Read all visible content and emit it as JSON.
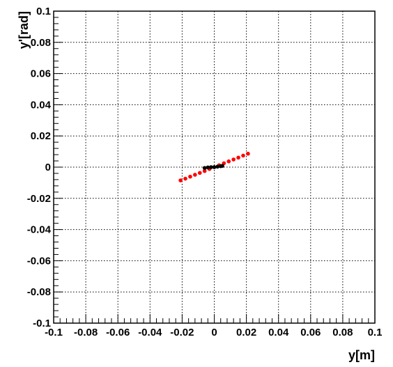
{
  "chart_data": {
    "type": "scatter",
    "xlabel": "y[m]",
    "ylabel": "y'[rad]",
    "xlim": [
      -0.1,
      0.1
    ],
    "ylim": [
      -0.1,
      0.1
    ],
    "grid": true,
    "x_ticks": [
      -0.1,
      -0.08,
      -0.06,
      -0.04,
      -0.02,
      0,
      0.02,
      0.04,
      0.06,
      0.08,
      0.1
    ],
    "y_ticks": [
      -0.1,
      -0.08,
      -0.06,
      -0.04,
      -0.02,
      0,
      0.02,
      0.04,
      0.06,
      0.08,
      0.1
    ],
    "x_tick_labels": [
      "-0.1",
      "-0.08",
      "-0.06",
      "-0.04",
      "-0.02",
      "0",
      "0.02",
      "0.04",
      "0.06",
      "0.08",
      "0.1"
    ],
    "y_tick_labels": [
      "-0.1",
      "-0.08",
      "-0.06",
      "-0.04",
      "-0.02",
      "0",
      "0.02",
      "0.04",
      "0.06",
      "0.08",
      "0.1"
    ],
    "series": [
      {
        "color": "#ff0000",
        "points": [
          [
            -0.021,
            -0.0085
          ],
          [
            -0.018,
            -0.0074
          ],
          [
            -0.015,
            -0.0061
          ],
          [
            -0.012,
            -0.0049
          ],
          [
            -0.009,
            -0.0037
          ],
          [
            -0.006,
            -0.0025
          ],
          [
            -0.003,
            -0.0012
          ],
          [
            0.0,
            0.0
          ],
          [
            0.003,
            0.0012
          ],
          [
            0.006,
            0.0025
          ],
          [
            0.009,
            0.0037
          ],
          [
            0.012,
            0.0049
          ],
          [
            0.015,
            0.0061
          ],
          [
            0.018,
            0.0074
          ],
          [
            0.021,
            0.0086
          ]
        ]
      },
      {
        "color": "#000000",
        "points": [
          [
            -0.006,
            -0.0005
          ],
          [
            -0.004,
            -0.0002
          ],
          [
            -0.002,
            0.0
          ],
          [
            0.0,
            0.0
          ],
          [
            0.002,
            0.0003
          ],
          [
            0.004,
            0.0006
          ],
          [
            0.005,
            0.0008
          ]
        ]
      }
    ]
  }
}
